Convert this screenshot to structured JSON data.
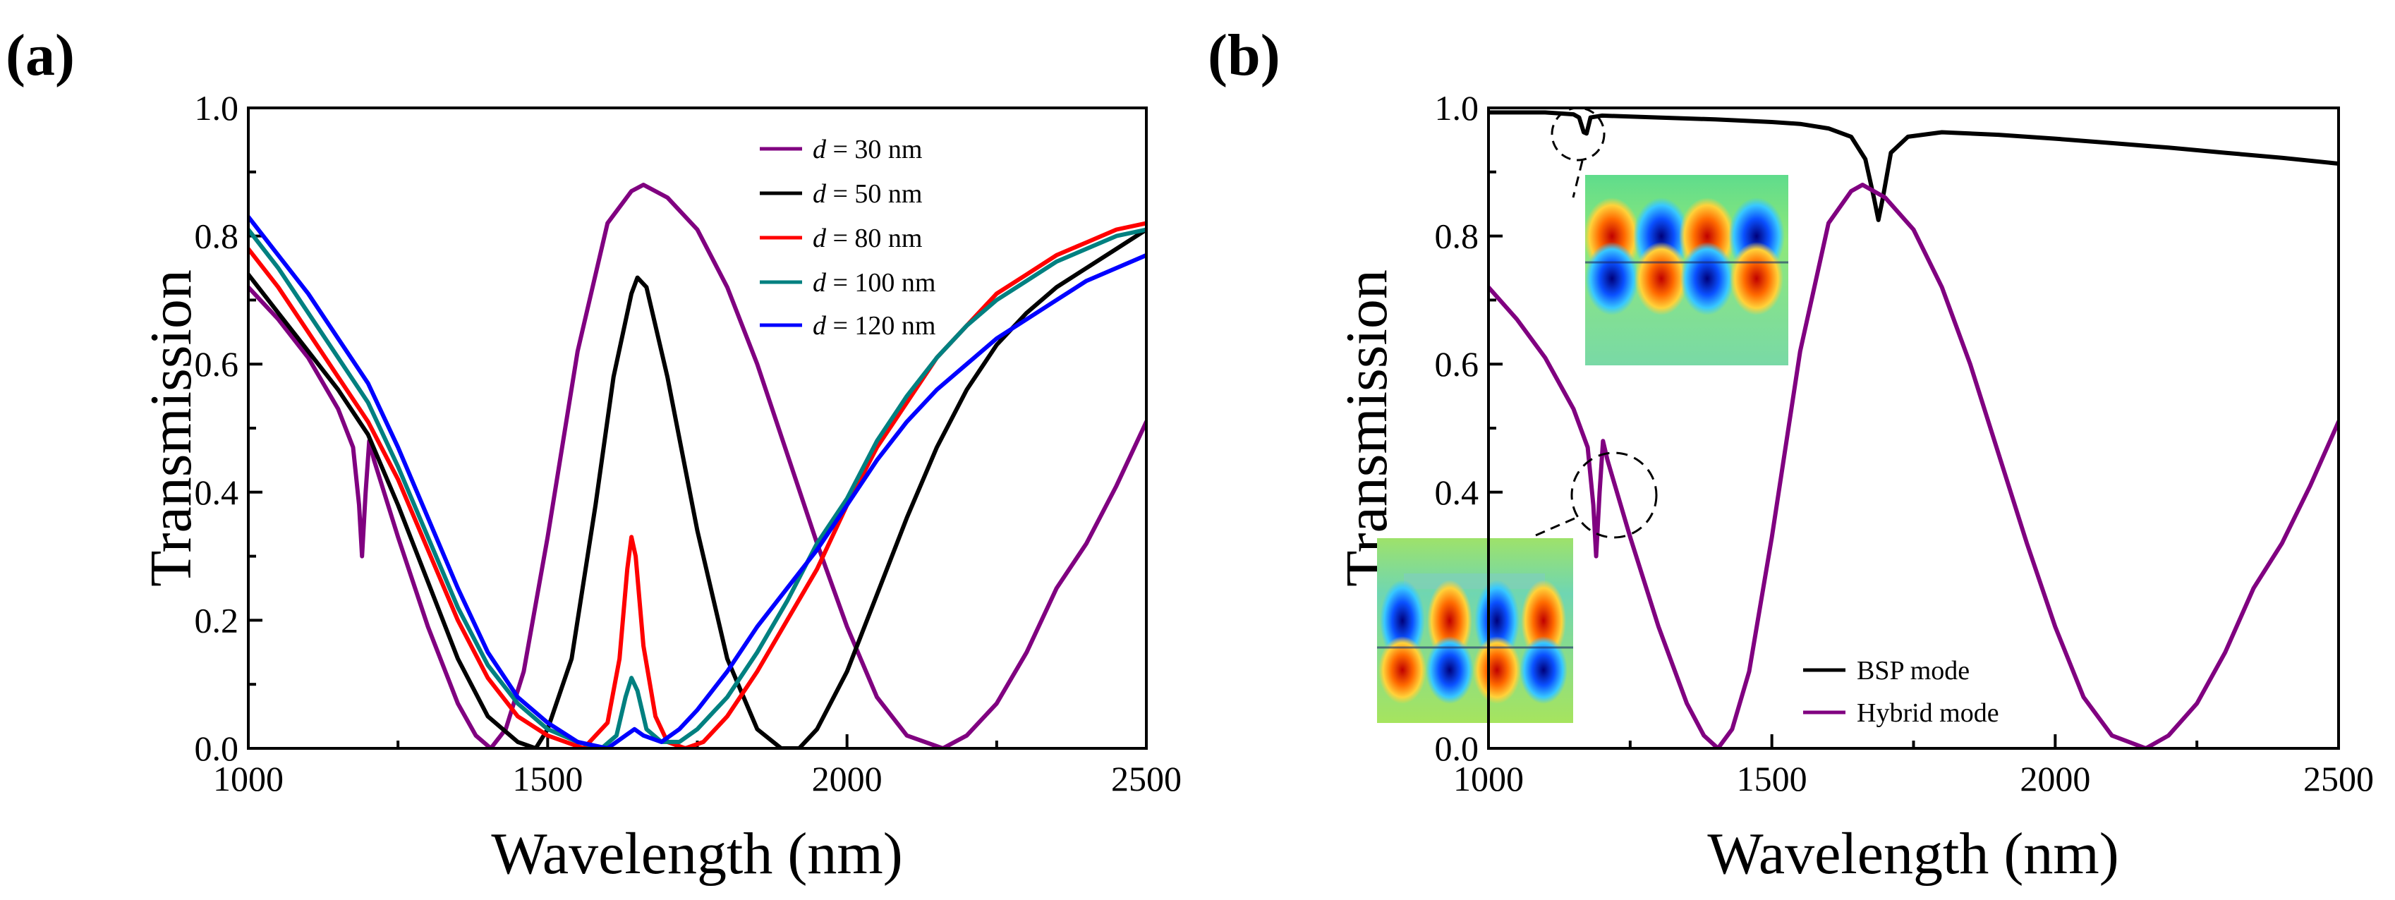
{
  "chart_data": [
    {
      "type": "line",
      "panel_label": "(a)",
      "xlabel": "Wavelength (nm)",
      "ylabel": "Transmission",
      "xlim": [
        1000,
        2500
      ],
      "ylim": [
        0,
        1.0
      ],
      "xticks": [
        1000,
        1500,
        2000,
        2500
      ],
      "xtick_labels": [
        "1000",
        "1500",
        "2000",
        "2500"
      ],
      "yticks": [
        0,
        0.2,
        0.4,
        0.6,
        0.8,
        1.0
      ],
      "ytick_labels": [
        "0.0",
        "0.2",
        "0.4",
        "0.6",
        "0.8",
        "1.0"
      ],
      "grid": false,
      "legend_position": "top-right",
      "series": [
        {
          "name": "d = 30 nm",
          "legend_var": "d",
          "legend_rest": " = 30 nm",
          "color": "#800080",
          "points": [
            [
              1000,
              0.72
            ],
            [
              1050,
              0.67
            ],
            [
              1100,
              0.61
            ],
            [
              1150,
              0.53
            ],
            [
              1175,
              0.47
            ],
            [
              1185,
              0.38
            ],
            [
              1190,
              0.3
            ],
            [
              1196,
              0.4
            ],
            [
              1202,
              0.48
            ],
            [
              1210,
              0.45
            ],
            [
              1250,
              0.33
            ],
            [
              1300,
              0.19
            ],
            [
              1350,
              0.07
            ],
            [
              1380,
              0.02
            ],
            [
              1405,
              0.0
            ],
            [
              1430,
              0.03
            ],
            [
              1460,
              0.12
            ],
            [
              1500,
              0.33
            ],
            [
              1550,
              0.62
            ],
            [
              1600,
              0.82
            ],
            [
              1640,
              0.87
            ],
            [
              1660,
              0.88
            ],
            [
              1700,
              0.86
            ],
            [
              1750,
              0.81
            ],
            [
              1800,
              0.72
            ],
            [
              1850,
              0.6
            ],
            [
              1900,
              0.46
            ],
            [
              1950,
              0.32
            ],
            [
              2000,
              0.19
            ],
            [
              2050,
              0.08
            ],
            [
              2100,
              0.02
            ],
            [
              2160,
              0.0
            ],
            [
              2200,
              0.02
            ],
            [
              2250,
              0.07
            ],
            [
              2300,
              0.15
            ],
            [
              2350,
              0.25
            ],
            [
              2400,
              0.32
            ],
            [
              2450,
              0.41
            ],
            [
              2500,
              0.51
            ]
          ]
        },
        {
          "name": "d = 50 nm",
          "legend_var": "d",
          "legend_rest": " = 50 nm",
          "color": "#000000",
          "points": [
            [
              1000,
              0.74
            ],
            [
              1050,
              0.68
            ],
            [
              1100,
              0.62
            ],
            [
              1150,
              0.56
            ],
            [
              1200,
              0.49
            ],
            [
              1250,
              0.38
            ],
            [
              1300,
              0.26
            ],
            [
              1350,
              0.14
            ],
            [
              1400,
              0.05
            ],
            [
              1450,
              0.01
            ],
            [
              1480,
              0.0
            ],
            [
              1500,
              0.03
            ],
            [
              1540,
              0.14
            ],
            [
              1580,
              0.38
            ],
            [
              1610,
              0.58
            ],
            [
              1640,
              0.71
            ],
            [
              1650,
              0.735
            ],
            [
              1665,
              0.72
            ],
            [
              1700,
              0.58
            ],
            [
              1750,
              0.34
            ],
            [
              1800,
              0.14
            ],
            [
              1850,
              0.03
            ],
            [
              1890,
              0.0
            ],
            [
              1920,
              0.0
            ],
            [
              1950,
              0.03
            ],
            [
              2000,
              0.12
            ],
            [
              2050,
              0.24
            ],
            [
              2100,
              0.36
            ],
            [
              2150,
              0.47
            ],
            [
              2200,
              0.56
            ],
            [
              2250,
              0.63
            ],
            [
              2300,
              0.68
            ],
            [
              2350,
              0.72
            ],
            [
              2400,
              0.75
            ],
            [
              2450,
              0.78
            ],
            [
              2500,
              0.81
            ]
          ]
        },
        {
          "name": "d = 80 nm",
          "legend_var": "d",
          "legend_rest": " = 80 nm",
          "color": "#ff0000",
          "points": [
            [
              1000,
              0.78
            ],
            [
              1050,
              0.72
            ],
            [
              1100,
              0.65
            ],
            [
              1150,
              0.58
            ],
            [
              1200,
              0.51
            ],
            [
              1250,
              0.42
            ],
            [
              1300,
              0.31
            ],
            [
              1350,
              0.2
            ],
            [
              1400,
              0.11
            ],
            [
              1450,
              0.05
            ],
            [
              1500,
              0.02
            ],
            [
              1530,
              0.01
            ],
            [
              1560,
              0.0
            ],
            [
              1600,
              0.04
            ],
            [
              1620,
              0.14
            ],
            [
              1633,
              0.28
            ],
            [
              1640,
              0.33
            ],
            [
              1647,
              0.3
            ],
            [
              1660,
              0.16
            ],
            [
              1680,
              0.05
            ],
            [
              1700,
              0.01
            ],
            [
              1730,
              0.0
            ],
            [
              1760,
              0.01
            ],
            [
              1800,
              0.05
            ],
            [
              1850,
              0.12
            ],
            [
              1900,
              0.2
            ],
            [
              1950,
              0.28
            ],
            [
              2000,
              0.38
            ],
            [
              2050,
              0.47
            ],
            [
              2100,
              0.54
            ],
            [
              2150,
              0.61
            ],
            [
              2200,
              0.66
            ],
            [
              2250,
              0.71
            ],
            [
              2300,
              0.74
            ],
            [
              2350,
              0.77
            ],
            [
              2400,
              0.79
            ],
            [
              2450,
              0.81
            ],
            [
              2500,
              0.82
            ]
          ]
        },
        {
          "name": "d = 100 nm",
          "legend_var": "d",
          "legend_rest": " = 100 nm",
          "color": "#008080",
          "points": [
            [
              1000,
              0.81
            ],
            [
              1050,
              0.75
            ],
            [
              1100,
              0.68
            ],
            [
              1150,
              0.61
            ],
            [
              1200,
              0.54
            ],
            [
              1250,
              0.44
            ],
            [
              1300,
              0.33
            ],
            [
              1350,
              0.22
            ],
            [
              1400,
              0.13
            ],
            [
              1450,
              0.07
            ],
            [
              1500,
              0.03
            ],
            [
              1550,
              0.01
            ],
            [
              1590,
              0.0
            ],
            [
              1615,
              0.02
            ],
            [
              1630,
              0.08
            ],
            [
              1640,
              0.11
            ],
            [
              1650,
              0.09
            ],
            [
              1665,
              0.03
            ],
            [
              1690,
              0.01
            ],
            [
              1720,
              0.01
            ],
            [
              1750,
              0.03
            ],
            [
              1800,
              0.08
            ],
            [
              1850,
              0.15
            ],
            [
              1900,
              0.23
            ],
            [
              1950,
              0.32
            ],
            [
              2000,
              0.39
            ],
            [
              2050,
              0.48
            ],
            [
              2100,
              0.55
            ],
            [
              2150,
              0.61
            ],
            [
              2200,
              0.66
            ],
            [
              2250,
              0.7
            ],
            [
              2300,
              0.73
            ],
            [
              2350,
              0.76
            ],
            [
              2400,
              0.78
            ],
            [
              2450,
              0.8
            ],
            [
              2500,
              0.81
            ]
          ]
        },
        {
          "name": "d = 120 nm",
          "legend_var": "d",
          "legend_rest": " = 120 nm",
          "color": "#0000ff",
          "points": [
            [
              1000,
              0.83
            ],
            [
              1050,
              0.77
            ],
            [
              1100,
              0.71
            ],
            [
              1150,
              0.64
            ],
            [
              1200,
              0.57
            ],
            [
              1250,
              0.47
            ],
            [
              1300,
              0.36
            ],
            [
              1350,
              0.25
            ],
            [
              1400,
              0.15
            ],
            [
              1450,
              0.08
            ],
            [
              1500,
              0.04
            ],
            [
              1550,
              0.01
            ],
            [
              1600,
              0.0
            ],
            [
              1630,
              0.02
            ],
            [
              1645,
              0.03
            ],
            [
              1660,
              0.02
            ],
            [
              1690,
              0.01
            ],
            [
              1720,
              0.03
            ],
            [
              1750,
              0.06
            ],
            [
              1800,
              0.12
            ],
            [
              1850,
              0.19
            ],
            [
              1900,
              0.25
            ],
            [
              1950,
              0.31
            ],
            [
              2000,
              0.38
            ],
            [
              2050,
              0.45
            ],
            [
              2100,
              0.51
            ],
            [
              2150,
              0.56
            ],
            [
              2200,
              0.6
            ],
            [
              2250,
              0.64
            ],
            [
              2300,
              0.67
            ],
            [
              2350,
              0.7
            ],
            [
              2400,
              0.73
            ],
            [
              2450,
              0.75
            ],
            [
              2500,
              0.77
            ]
          ]
        }
      ]
    },
    {
      "type": "line",
      "panel_label": "(b)",
      "xlabel": "Wavelength (nm)",
      "ylabel": "Transmission",
      "xlim": [
        1000,
        2500
      ],
      "ylim": [
        0,
        1.0
      ],
      "xticks": [
        1000,
        1500,
        2000,
        2500
      ],
      "xtick_labels": [
        "1000",
        "1500",
        "2000",
        "2500"
      ],
      "yticks": [
        0,
        0.2,
        0.4,
        0.6,
        0.8,
        1.0
      ],
      "ytick_labels": [
        "0.0",
        "0.2",
        "0.4",
        "0.6",
        "0.8",
        "1.0"
      ],
      "grid": false,
      "legend_position": "bottom-right",
      "annotations": [
        "dashed circle at the BSP-mode dip near 1170 nm with field-map inset",
        "dashed circle at the hybrid-mode dip near 1190 nm with field-map inset"
      ],
      "series": [
        {
          "name": "BSP mode",
          "color": "#000000",
          "points": [
            [
              1000,
              0.993
            ],
            [
              1100,
              0.993
            ],
            [
              1150,
              0.99
            ],
            [
              1160,
              0.985
            ],
            [
              1168,
              0.962
            ],
            [
              1173,
              0.96
            ],
            [
              1180,
              0.985
            ],
            [
              1200,
              0.988
            ],
            [
              1300,
              0.985
            ],
            [
              1400,
              0.982
            ],
            [
              1500,
              0.978
            ],
            [
              1550,
              0.975
            ],
            [
              1600,
              0.968
            ],
            [
              1640,
              0.955
            ],
            [
              1665,
              0.92
            ],
            [
              1680,
              0.86
            ],
            [
              1688,
              0.825
            ],
            [
              1696,
              0.86
            ],
            [
              1710,
              0.93
            ],
            [
              1740,
              0.955
            ],
            [
              1800,
              0.962
            ],
            [
              1900,
              0.958
            ],
            [
              2000,
              0.952
            ],
            [
              2100,
              0.945
            ],
            [
              2200,
              0.938
            ],
            [
              2300,
              0.93
            ],
            [
              2400,
              0.922
            ],
            [
              2500,
              0.913
            ]
          ]
        },
        {
          "name": "Hybrid mode",
          "color": "#800080",
          "points": [
            [
              1000,
              0.72
            ],
            [
              1050,
              0.67
            ],
            [
              1100,
              0.61
            ],
            [
              1150,
              0.53
            ],
            [
              1175,
              0.47
            ],
            [
              1185,
              0.38
            ],
            [
              1190,
              0.3
            ],
            [
              1196,
              0.4
            ],
            [
              1202,
              0.48
            ],
            [
              1210,
              0.45
            ],
            [
              1250,
              0.33
            ],
            [
              1300,
              0.19
            ],
            [
              1350,
              0.07
            ],
            [
              1380,
              0.02
            ],
            [
              1405,
              0.0
            ],
            [
              1430,
              0.03
            ],
            [
              1460,
              0.12
            ],
            [
              1500,
              0.33
            ],
            [
              1550,
              0.62
            ],
            [
              1600,
              0.82
            ],
            [
              1640,
              0.87
            ],
            [
              1660,
              0.88
            ],
            [
              1700,
              0.86
            ],
            [
              1750,
              0.81
            ],
            [
              1800,
              0.72
            ],
            [
              1850,
              0.6
            ],
            [
              1900,
              0.46
            ],
            [
              1950,
              0.32
            ],
            [
              2000,
              0.19
            ],
            [
              2050,
              0.08
            ],
            [
              2100,
              0.02
            ],
            [
              2160,
              0.0
            ],
            [
              2200,
              0.02
            ],
            [
              2250,
              0.07
            ],
            [
              2300,
              0.15
            ],
            [
              2350,
              0.25
            ],
            [
              2400,
              0.32
            ],
            [
              2450,
              0.41
            ],
            [
              2500,
              0.51
            ]
          ]
        }
      ]
    }
  ]
}
